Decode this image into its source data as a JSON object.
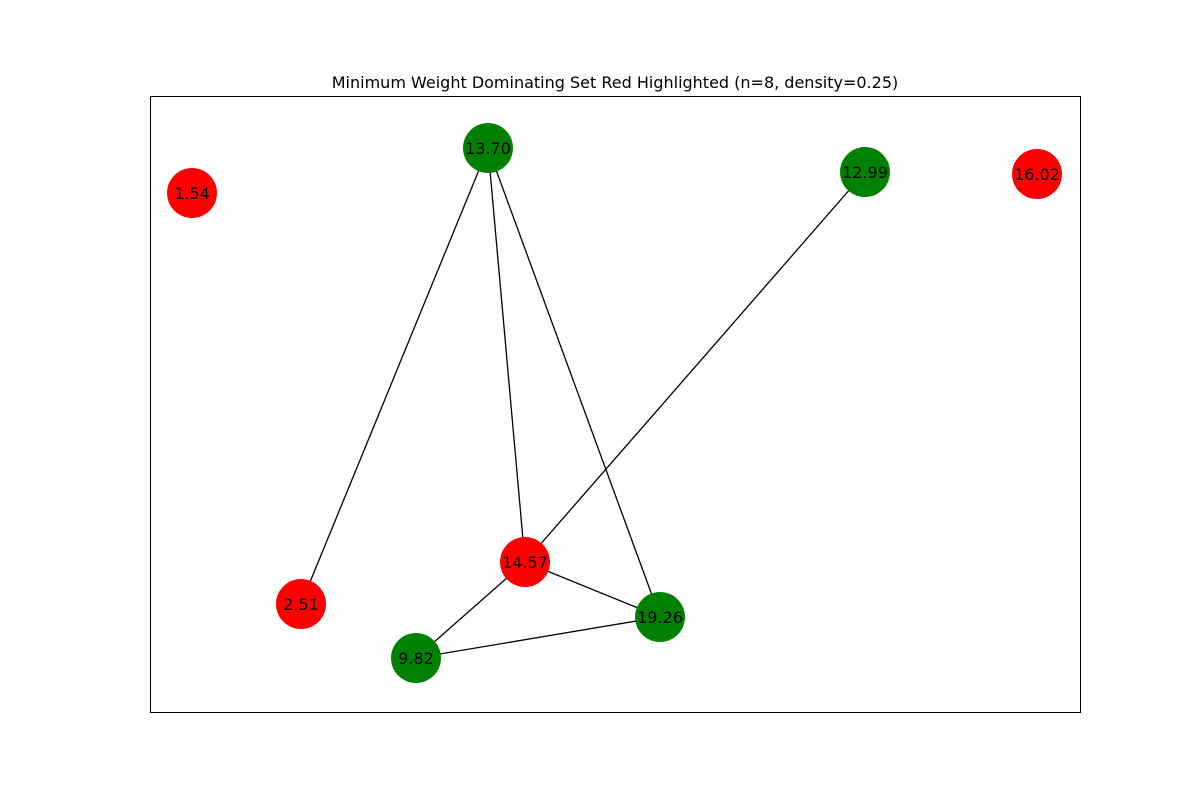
{
  "figure": {
    "title": "Minimum Weight Dominating Set Red Highlighted (n=8, density=0.25)"
  },
  "colors": {
    "dominating": "#ff0000",
    "other": "#008000",
    "edge": "#000000",
    "frame": "#000000"
  },
  "graph": {
    "nodes": [
      {
        "id": "n1",
        "label": "1.54",
        "in_dominating_set": true
      },
      {
        "id": "n2",
        "label": "13.70",
        "in_dominating_set": false
      },
      {
        "id": "n3",
        "label": "12.99",
        "in_dominating_set": false
      },
      {
        "id": "n4",
        "label": "16.02",
        "in_dominating_set": true
      },
      {
        "id": "n5",
        "label": "14.57",
        "in_dominating_set": true
      },
      {
        "id": "n6",
        "label": "2.51",
        "in_dominating_set": true
      },
      {
        "id": "n7",
        "label": "19.26",
        "in_dominating_set": false
      },
      {
        "id": "n8",
        "label": "9.82",
        "in_dominating_set": false
      }
    ],
    "edges": [
      {
        "source": "n2",
        "target": "n6"
      },
      {
        "source": "n2",
        "target": "n5"
      },
      {
        "source": "n2",
        "target": "n7"
      },
      {
        "source": "n3",
        "target": "n5"
      },
      {
        "source": "n5",
        "target": "n8"
      },
      {
        "source": "n5",
        "target": "n7"
      },
      {
        "source": "n8",
        "target": "n7"
      }
    ]
  }
}
